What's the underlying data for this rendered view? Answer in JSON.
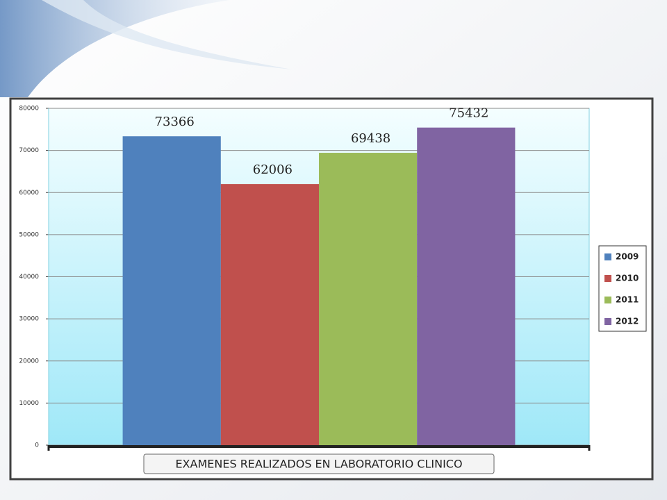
{
  "chart_data": {
    "type": "bar",
    "categories": [
      "EXAMENES REALIZADOS EN LABORATORIO CLINICO"
    ],
    "series": [
      {
        "name": "2009",
        "color": "#4f81bd",
        "values": [
          73366
        ]
      },
      {
        "name": "2010",
        "color": "#c0504d",
        "values": [
          62006
        ]
      },
      {
        "name": "2011",
        "color": "#9bbb59",
        "values": [
          69438
        ]
      },
      {
        "name": "2012",
        "color": "#8064a2",
        "values": [
          75432
        ]
      }
    ],
    "ylim": [
      0,
      80000
    ],
    "yticks": [
      0,
      10000,
      20000,
      30000,
      40000,
      50000,
      60000,
      70000,
      80000
    ],
    "grid": true,
    "legend": "right"
  }
}
